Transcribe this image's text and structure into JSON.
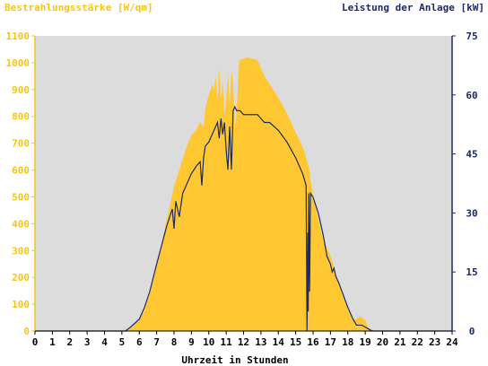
{
  "chart_data": {
    "type": "area",
    "left_title": "Bestrahlungsstärke [W/qm]",
    "right_title": "Leistung der Anlage [kW]",
    "xlabel": "Uhrzeit in Stunden",
    "xlim": [
      0,
      24
    ],
    "x_ticks": [
      "0",
      "1",
      "2",
      "3",
      "4",
      "5",
      "6",
      "7",
      "8",
      "9",
      "10",
      "11",
      "12",
      "13",
      "14",
      "15",
      "16",
      "17",
      "18",
      "19",
      "20",
      "21",
      "22",
      "23",
      "24"
    ],
    "ylim_left": [
      0,
      1100
    ],
    "y_ticks_left": [
      "0",
      "100",
      "200",
      "300",
      "400",
      "500",
      "600",
      "700",
      "800",
      "900",
      "1000",
      "1100"
    ],
    "ylim_right": [
      0,
      75
    ],
    "y_ticks_right": [
      "0",
      "15",
      "30",
      "45",
      "60",
      "75"
    ],
    "grid": false,
    "colors": {
      "irradiance": "#ffc832",
      "power": "#1a2a6a",
      "plot_bg": "#dcdcdc",
      "left_axis": "#f5c518",
      "right_axis": "#1a2a6a"
    },
    "series": [
      {
        "name": "Bestrahlungsstärke [W/qm]",
        "axis": "left",
        "style": "area",
        "x": [
          0,
          5.2,
          5.5,
          6.0,
          6.3,
          6.6,
          7.0,
          7.4,
          7.8,
          8.0,
          8.2,
          8.5,
          8.8,
          9.0,
          9.3,
          9.5,
          9.7,
          9.8,
          10.0,
          10.2,
          10.3,
          10.4,
          10.5,
          10.6,
          10.7,
          10.8,
          10.9,
          11.0,
          11.1,
          11.2,
          11.3,
          11.4,
          11.5,
          11.6,
          11.7,
          11.75,
          11.8,
          12.0,
          12.2,
          12.5,
          12.8,
          13.0,
          13.2,
          13.5,
          14.0,
          14.5,
          15.0,
          15.3,
          15.5,
          15.7,
          15.8,
          15.85,
          16.0,
          16.3,
          16.5,
          16.8,
          17.0,
          17.2,
          17.5,
          18.0,
          18.3,
          18.5,
          18.7,
          19.0,
          19.2,
          19.5,
          19.7,
          20,
          24
        ],
        "y": [
          0,
          0,
          10,
          40,
          80,
          140,
          240,
          360,
          480,
          540,
          580,
          640,
          700,
          730,
          750,
          780,
          760,
          830,
          880,
          920,
          900,
          950,
          860,
          980,
          870,
          930,
          800,
          860,
          960,
          840,
          970,
          930,
          750,
          820,
          950,
          1010,
          1010,
          1015,
          1020,
          1015,
          1010,
          980,
          950,
          920,
          870,
          810,
          740,
          700,
          670,
          620,
          600,
          560,
          510,
          420,
          360,
          310,
          280,
          240,
          170,
          80,
          40,
          45,
          55,
          40,
          10,
          0,
          0,
          0,
          0
        ]
      },
      {
        "name": "Leistung der Anlage [kW]",
        "axis": "right",
        "style": "line",
        "x": [
          0,
          5.2,
          5.5,
          6.0,
          6.3,
          6.6,
          7.0,
          7.3,
          7.6,
          7.9,
          8.0,
          8.1,
          8.3,
          8.5,
          8.8,
          9.0,
          9.3,
          9.5,
          9.6,
          9.7,
          9.8,
          10.0,
          10.3,
          10.5,
          10.6,
          10.7,
          10.8,
          10.9,
          11.0,
          11.1,
          11.2,
          11.3,
          11.4,
          11.5,
          11.6,
          11.8,
          12.0,
          12.5,
          12.8,
          13.0,
          13.2,
          13.5,
          14.0,
          14.5,
          15.0,
          15.4,
          15.6,
          15.65,
          15.7,
          15.72,
          15.75,
          15.8,
          15.85,
          16.0,
          16.3,
          16.6,
          16.8,
          17.0,
          17.1,
          17.2,
          17.3,
          17.5,
          18.0,
          18.3,
          18.5,
          18.8,
          19.0,
          19.2,
          19.4,
          20,
          24
        ],
        "y": [
          0,
          0,
          1,
          3,
          6,
          10,
          17,
          22,
          27,
          31,
          26,
          33,
          29,
          35,
          38,
          40,
          42,
          43,
          37,
          44,
          47,
          48,
          51,
          53,
          49,
          54,
          50,
          53,
          46,
          41,
          52,
          41,
          56,
          57,
          56,
          56,
          55,
          55,
          55,
          54,
          53,
          53,
          51,
          48,
          44,
          40,
          37,
          0,
          25,
          5,
          35,
          10,
          35,
          34,
          30,
          24,
          19,
          17,
          15,
          16,
          14,
          12,
          6,
          3,
          1.5,
          1.5,
          1,
          0.5,
          0,
          0,
          0
        ]
      }
    ]
  }
}
